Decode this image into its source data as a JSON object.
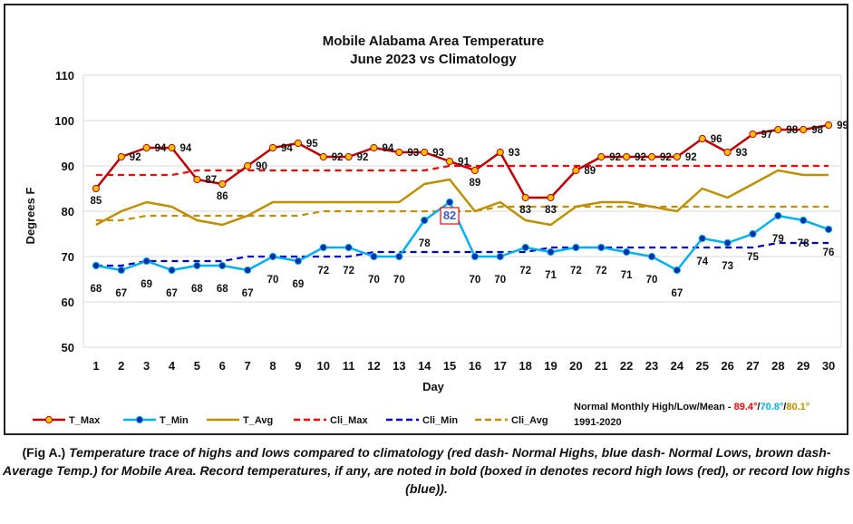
{
  "chart_data": {
    "type": "line",
    "title": "Mobile Alabama Area Temperature",
    "subtitle": "June 2023 vs Climatology",
    "xlabel": "Day",
    "ylabel": "Degrees F",
    "ylim": [
      50,
      110
    ],
    "yticks": [
      50,
      60,
      70,
      80,
      90,
      100,
      110
    ],
    "grid": true,
    "legend_position": "bottom",
    "x": [
      1,
      2,
      3,
      4,
      5,
      6,
      7,
      8,
      9,
      10,
      11,
      12,
      13,
      14,
      15,
      16,
      17,
      18,
      19,
      20,
      21,
      22,
      23,
      24,
      25,
      26,
      27,
      28,
      29,
      30
    ],
    "series": [
      {
        "name": "T_Max",
        "color": "#c00000",
        "marker": "circle",
        "marker_fill": "#ffc000",
        "style": "solid",
        "values": [
          85,
          92,
          94,
          94,
          87,
          86,
          90,
          94,
          95,
          92,
          92,
          94,
          93,
          93,
          91,
          89,
          93,
          83,
          83,
          89,
          92,
          92,
          92,
          92,
          96,
          93,
          97,
          98,
          98,
          99
        ]
      },
      {
        "name": "T_Min",
        "color": "#00b0f0",
        "marker": "circle",
        "marker_fill": "#002fa7",
        "style": "solid",
        "values": [
          68,
          67,
          69,
          67,
          68,
          68,
          67,
          70,
          69,
          72,
          72,
          70,
          70,
          78,
          82,
          70,
          70,
          72,
          71,
          72,
          72,
          71,
          70,
          67,
          74,
          73,
          75,
          79,
          78,
          76
        ]
      },
      {
        "name": "T_Avg",
        "color": "#bf8f00",
        "marker": "none",
        "style": "solid",
        "values": [
          77,
          80,
          82,
          81,
          78,
          77,
          79,
          82,
          82,
          82,
          82,
          82,
          82,
          86,
          87,
          80,
          82,
          78,
          77,
          81,
          82,
          82,
          81,
          80,
          85,
          83,
          86,
          89,
          88,
          88
        ]
      },
      {
        "name": "Cli_Max",
        "color": "#ff0000",
        "marker": "none",
        "style": "dashed",
        "values": [
          88,
          88,
          88,
          88,
          89,
          89,
          89,
          89,
          89,
          89,
          89,
          89,
          89,
          89,
          90,
          90,
          90,
          90,
          90,
          90,
          90,
          90,
          90,
          90,
          90,
          90,
          90,
          90,
          90,
          90
        ]
      },
      {
        "name": "Cli_Min",
        "color": "#0000cc",
        "marker": "none",
        "style": "dashed",
        "values": [
          68,
          68,
          69,
          69,
          69,
          69,
          70,
          70,
          70,
          70,
          70,
          71,
          71,
          71,
          71,
          71,
          71,
          71,
          72,
          72,
          72,
          72,
          72,
          72,
          72,
          72,
          72,
          73,
          73,
          73
        ]
      },
      {
        "name": "Cli_Avg",
        "color": "#bf8f00",
        "marker": "none",
        "style": "dashed",
        "values": [
          78,
          78,
          79,
          79,
          79,
          79,
          79,
          79,
          79,
          80,
          80,
          80,
          80,
          80,
          80,
          80,
          81,
          81,
          81,
          81,
          81,
          81,
          81,
          81,
          81,
          81,
          81,
          81,
          81,
          81
        ]
      }
    ],
    "data_labels": {
      "T_Max": [
        "85",
        "92",
        "94",
        "94",
        "87",
        "86",
        "90",
        "94",
        "95",
        "92",
        "92",
        "94",
        "93",
        "93",
        "91",
        "89",
        "93",
        "83",
        "83",
        "89",
        "92",
        "92",
        "92",
        "92",
        "96",
        "93",
        "97",
        "98",
        "98",
        "99"
      ],
      "T_Min": [
        "68",
        "67",
        "69",
        "67",
        "68",
        "68",
        "67",
        "70",
        "69",
        "72",
        "72",
        "70",
        "70",
        "78",
        "82",
        "70",
        "70",
        "72",
        "71",
        "72",
        "72",
        "71",
        "70",
        "67",
        "74",
        "73",
        "75",
        "79",
        "78",
        "76"
      ]
    },
    "record_boxed": {
      "series": "T_Min",
      "day": 15,
      "value": 82,
      "color": "#3a5cc7",
      "box_color": "#ff0000"
    },
    "note": {
      "prefix": "Normal Monthly High/Low/Mean - ",
      "high": "89.4°",
      "low": "70.8°",
      "mean": "80.1°",
      "high_color": "#ff0000",
      "low_color": "#00b0f0",
      "mean_color": "#bf8f00",
      "period": "1991-2020"
    }
  },
  "caption": {
    "lead": "(Fig A.)",
    "text": " Temperature trace of highs and lows compared to climatology (red dash- Normal Highs, blue dash- Normal Lows, brown dash- Average Temp.) for Mobile Area. Record temperatures, if any, are noted in bold (boxed in denotes record high lows (red), or record low highs (blue))."
  }
}
